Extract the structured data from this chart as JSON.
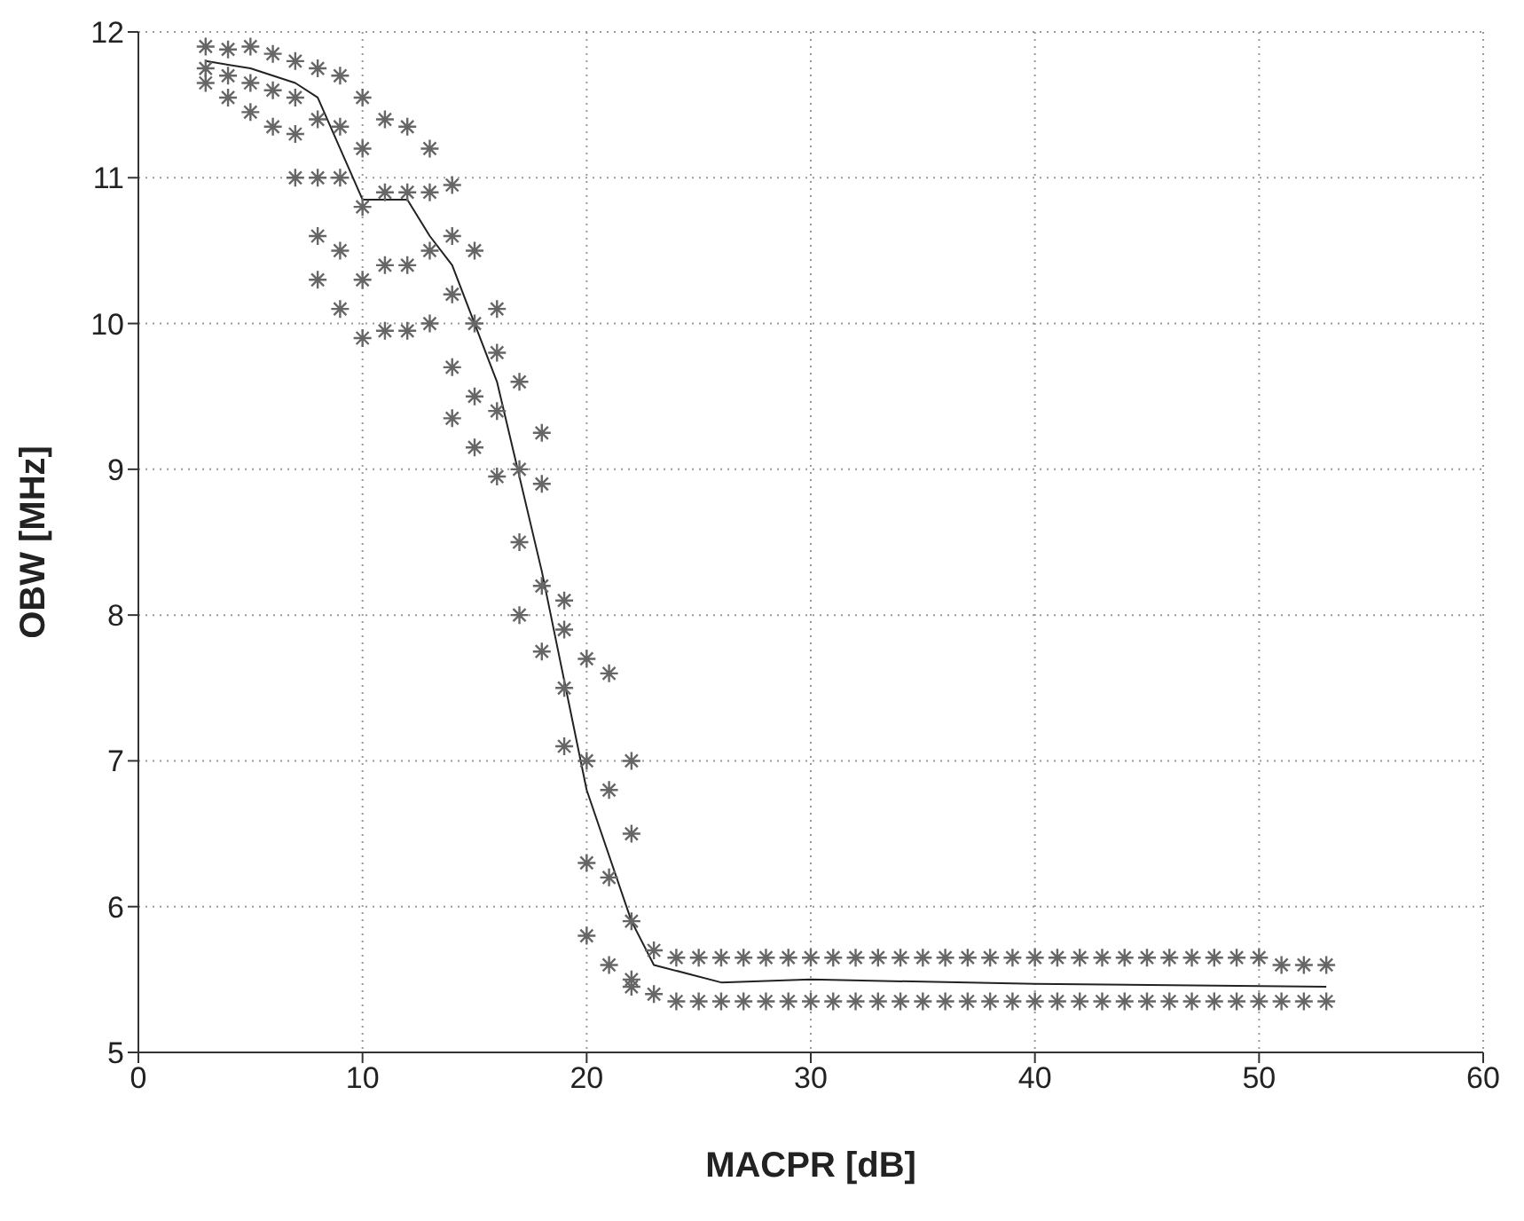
{
  "chart_data": {
    "type": "scatter",
    "xlabel": "MACPR [dB]",
    "ylabel": "OBW [MHz]",
    "xlim": [
      0,
      60
    ],
    "ylim": [
      5,
      12
    ],
    "xticks": [
      0,
      10,
      20,
      30,
      40,
      50,
      60
    ],
    "yticks": [
      5,
      6,
      7,
      8,
      9,
      10,
      11,
      12
    ],
    "grid": true,
    "marker": "cross",
    "legend": false,
    "series": [
      {
        "color": "#666666",
        "x": [
          3,
          3,
          3,
          4,
          4,
          4,
          5,
          5,
          5,
          6,
          6,
          6,
          7,
          7,
          7,
          7,
          8,
          8,
          8,
          8,
          8,
          9,
          9,
          9,
          9,
          9,
          10,
          10,
          10,
          10,
          10,
          11,
          11,
          11,
          11,
          12,
          12,
          12,
          12,
          13,
          13,
          13,
          13,
          14,
          14,
          14,
          14,
          14,
          15,
          15,
          15,
          15,
          16,
          16,
          16,
          16,
          17,
          17,
          17,
          17,
          18,
          18,
          18,
          18,
          19,
          19,
          19,
          19,
          20,
          20,
          20,
          20,
          21,
          21,
          21,
          21,
          22,
          22,
          22,
          22,
          22,
          23,
          23,
          24,
          24,
          25,
          25,
          26,
          26,
          27,
          27,
          28,
          28,
          29,
          29,
          30,
          30,
          31,
          31,
          32,
          32,
          33,
          33,
          34,
          34,
          35,
          35,
          36,
          36,
          37,
          37,
          38,
          38,
          39,
          39,
          40,
          40,
          41,
          41,
          42,
          42,
          43,
          43,
          44,
          44,
          45,
          45,
          46,
          46,
          47,
          47,
          48,
          48,
          49,
          49,
          50,
          50,
          51,
          51,
          52,
          52,
          53,
          53
        ],
        "values": [
          11.65,
          11.75,
          11.9,
          11.55,
          11.7,
          11.88,
          11.45,
          11.65,
          11.9,
          11.35,
          11.6,
          11.85,
          11.0,
          11.3,
          11.55,
          11.8,
          10.3,
          10.6,
          11.0,
          11.4,
          11.75,
          10.1,
          10.5,
          11.0,
          11.35,
          11.7,
          9.9,
          10.3,
          10.8,
          11.2,
          11.55,
          9.95,
          10.4,
          10.9,
          11.4,
          9.95,
          10.4,
          10.9,
          11.35,
          10.0,
          10.5,
          10.9,
          11.2,
          9.35,
          9.7,
          10.2,
          10.6,
          10.95,
          9.15,
          9.5,
          10.0,
          10.5,
          8.95,
          9.4,
          9.8,
          10.1,
          8.0,
          8.5,
          9.0,
          9.6,
          7.75,
          8.2,
          8.9,
          9.25,
          7.1,
          7.5,
          7.9,
          8.1,
          5.8,
          6.3,
          7.0,
          7.7,
          5.6,
          6.2,
          6.8,
          7.6,
          5.45,
          5.9,
          6.5,
          7.0,
          5.5,
          5.4,
          5.7,
          5.35,
          5.65,
          5.35,
          5.65,
          5.35,
          5.65,
          5.35,
          5.65,
          5.35,
          5.65,
          5.35,
          5.65,
          5.35,
          5.65,
          5.35,
          5.65,
          5.35,
          5.65,
          5.35,
          5.65,
          5.35,
          5.65,
          5.35,
          5.65,
          5.35,
          5.65,
          5.35,
          5.65,
          5.35,
          5.65,
          5.35,
          5.65,
          5.35,
          5.65,
          5.35,
          5.65,
          5.35,
          5.65,
          5.35,
          5.65,
          5.35,
          5.65,
          5.35,
          5.65,
          5.35,
          5.65,
          5.35,
          5.65,
          5.35,
          5.65,
          5.35,
          5.65,
          5.35,
          5.65,
          5.35,
          5.6,
          5.35,
          5.6,
          5.35,
          5.6
        ]
      },
      {
        "type": "line",
        "color": "#222222",
        "marker": "none",
        "line_style": "solid",
        "x": [
          3,
          5,
          7,
          8,
          10,
          12,
          13,
          14,
          16,
          18,
          20,
          22,
          23,
          26,
          30,
          40,
          53
        ],
        "values": [
          11.8,
          11.75,
          11.65,
          11.55,
          10.85,
          10.85,
          10.6,
          10.4,
          9.6,
          8.3,
          6.8,
          5.9,
          5.6,
          5.48,
          5.5,
          5.47,
          5.45
        ]
      }
    ]
  }
}
